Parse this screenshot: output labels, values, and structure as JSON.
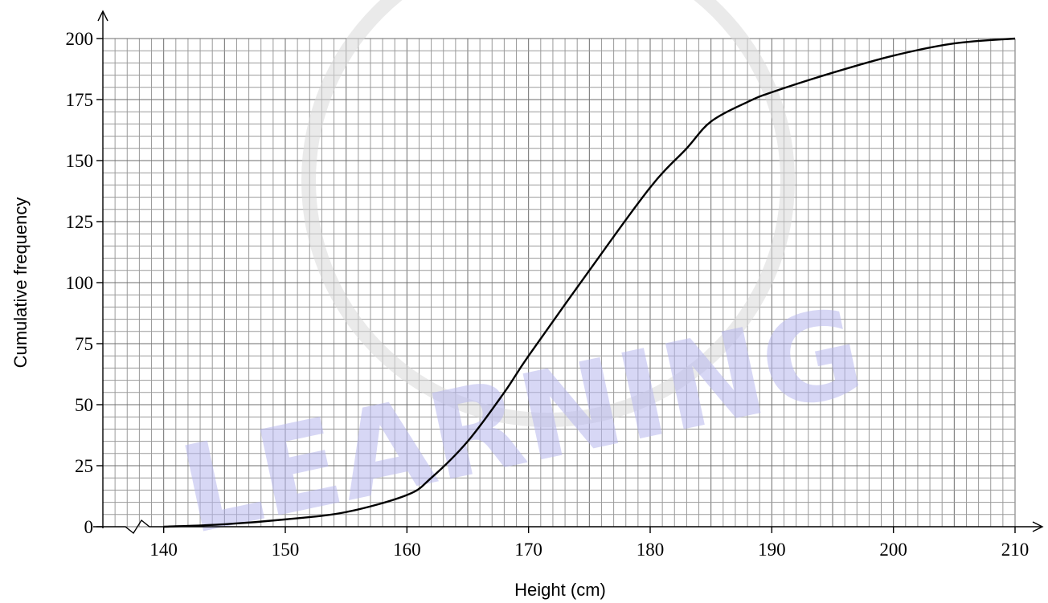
{
  "chart_data": {
    "type": "line",
    "title": "",
    "xlabel": "Height (cm)",
    "ylabel": "Cumulative frequency",
    "xlim": [
      135,
      210
    ],
    "ylim": [
      0,
      200
    ],
    "x_ticks": [
      140,
      150,
      160,
      170,
      180,
      190,
      200,
      210
    ],
    "y_ticks": [
      0,
      25,
      50,
      75,
      100,
      125,
      150,
      175,
      200
    ],
    "x_tick_labels": [
      "140",
      "150",
      "160",
      "170",
      "180",
      "190",
      "200",
      "210"
    ],
    "y_tick_labels": [
      "0",
      "25",
      "50",
      "75",
      "100",
      "125",
      "150",
      "175",
      "200"
    ],
    "axis_break": "x",
    "grid": true,
    "series": [
      {
        "x": [
          140,
          145,
          150,
          155,
          160,
          162,
          165,
          168,
          170,
          175,
          180,
          183,
          185,
          188,
          190,
          195,
          200,
          205,
          210
        ],
        "y": [
          0,
          1,
          3,
          6,
          13,
          20,
          35,
          55,
          70,
          105,
          139,
          155,
          166,
          174,
          178,
          186,
          193,
          198,
          200
        ],
        "color": "#000000"
      }
    ]
  },
  "watermark": {
    "text": "LEARNING",
    "color": "#b8b8ee"
  }
}
